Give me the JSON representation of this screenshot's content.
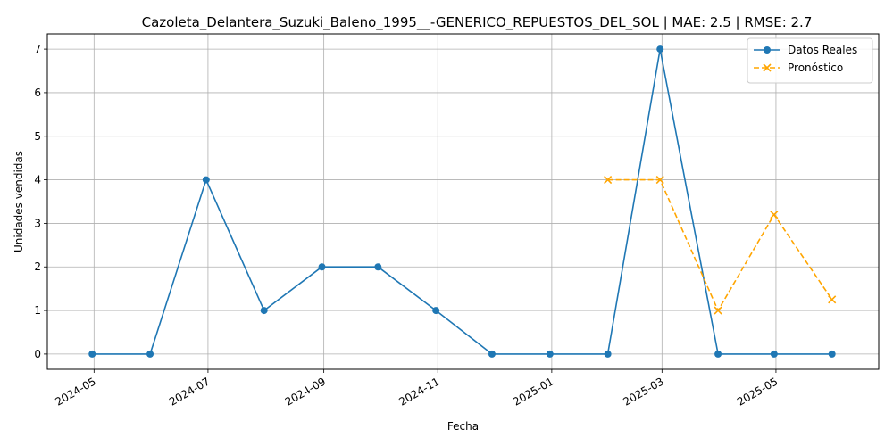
{
  "chart_data": {
    "type": "line",
    "title": "Cazoleta_Delantera_Suzuki_Baleno_1995__-GENERICO_REPUESTOS_DEL_SOL | MAE: 2.5 | RMSE: 2.7",
    "xlabel": "Fecha",
    "ylabel": "Unidades vendidas",
    "xlim": [
      "2024-04-06",
      "2025-06-25"
    ],
    "ylim": [
      -0.35,
      7.35
    ],
    "x_ticks": [
      "2024-05",
      "2024-07",
      "2024-09",
      "2024-11",
      "2025-01",
      "2025-03",
      "2025-05"
    ],
    "x_tick_dates": [
      "2024-05-01",
      "2024-07-01",
      "2024-09-01",
      "2024-11-01",
      "2025-01-01",
      "2025-03-01",
      "2025-05-01"
    ],
    "y_ticks": [
      0,
      1,
      2,
      3,
      4,
      5,
      6,
      7
    ],
    "grid": true,
    "legend_position": "top-right",
    "series": [
      {
        "name": "Datos Reales",
        "color": "#1f77b4",
        "line_style": "solid",
        "marker": "circle",
        "x": [
          "2024-04-30",
          "2024-05-31",
          "2024-06-30",
          "2024-07-31",
          "2024-08-31",
          "2024-09-30",
          "2024-10-31",
          "2024-11-30",
          "2024-12-31",
          "2025-01-31",
          "2025-02-28",
          "2025-03-31",
          "2025-04-30",
          "2025-05-31"
        ],
        "y": [
          0,
          0,
          4,
          1,
          2,
          2,
          1,
          0,
          0,
          0,
          7,
          0,
          0,
          0
        ]
      },
      {
        "name": "Pronóstico",
        "color": "#ffa500",
        "line_style": "dashed",
        "marker": "x",
        "x": [
          "2025-01-31",
          "2025-02-28",
          "2025-03-31",
          "2025-04-30",
          "2025-05-31"
        ],
        "y": [
          4,
          4,
          1,
          3.2,
          1.25
        ]
      }
    ]
  }
}
